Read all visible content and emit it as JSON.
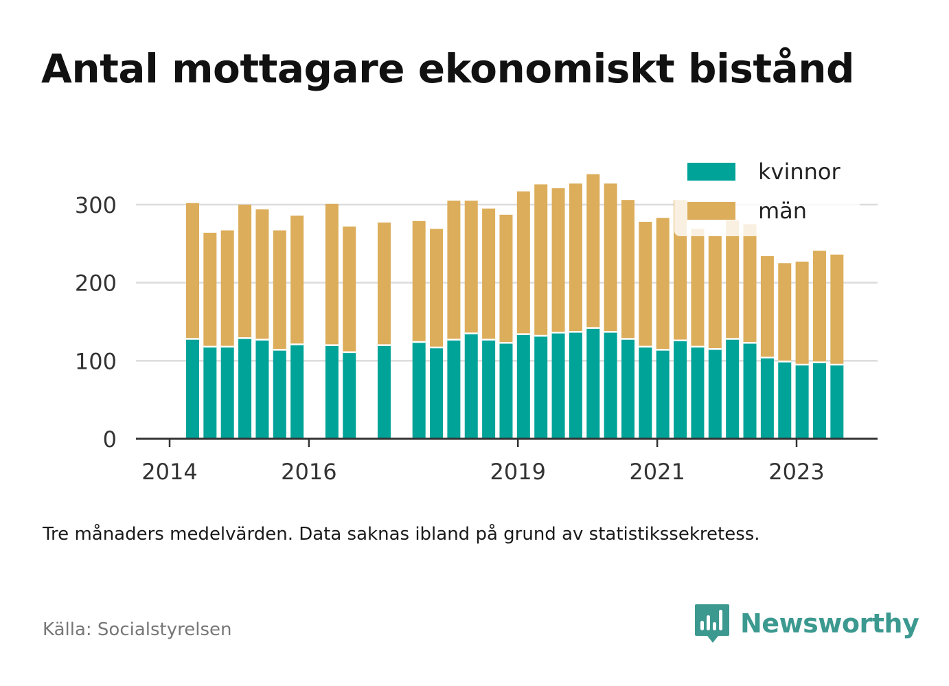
{
  "title": "Antal mottagare ekonomiskt bistånd",
  "note": "Tre månaders medelvärden. Data saknas ibland på grund av statistikssekretess.",
  "source": "Källa: Socialstyrelsen",
  "brand": "Newsworthy",
  "colors": {
    "kvinnor": "#00a398",
    "man": "#dcad5a",
    "grid": "#dcdcdc",
    "axis": "#333333",
    "brand": "#3c9990"
  },
  "chart_data": {
    "type": "bar",
    "stacked": true,
    "x_ticks": [
      {
        "label": "2014",
        "x": 2014.0
      },
      {
        "label": "2016",
        "x": 2016.0
      },
      {
        "label": "2019",
        "x": 2019.0
      },
      {
        "label": "2021",
        "x": 2021.0
      },
      {
        "label": "2023",
        "x": 2023.0
      }
    ],
    "xlim": [
      2013.5,
      2024.2
    ],
    "ylim": [
      0,
      342
    ],
    "y_ticks": [
      0,
      100,
      200,
      300
    ],
    "grid": true,
    "legend_position": "top-right",
    "series": [
      {
        "name": "kvinnor",
        "color": "#00a398"
      },
      {
        "name": "män",
        "color": "#dcad5a"
      }
    ],
    "points": [
      {
        "x": 2014.33,
        "kvinnor": 128,
        "man": 174
      },
      {
        "x": 2014.58,
        "kvinnor": 118,
        "man": 146
      },
      {
        "x": 2014.83,
        "kvinnor": 118,
        "man": 149
      },
      {
        "x": 2015.08,
        "kvinnor": 129,
        "man": 171
      },
      {
        "x": 2015.33,
        "kvinnor": 127,
        "man": 167
      },
      {
        "x": 2015.58,
        "kvinnor": 114,
        "man": 153
      },
      {
        "x": 2015.83,
        "kvinnor": 121,
        "man": 165
      },
      {
        "x": 2016.33,
        "kvinnor": 120,
        "man": 181
      },
      {
        "x": 2016.58,
        "kvinnor": 111,
        "man": 161
      },
      {
        "x": 2017.08,
        "kvinnor": 120,
        "man": 157
      },
      {
        "x": 2017.58,
        "kvinnor": 124,
        "man": 155
      },
      {
        "x": 2017.83,
        "kvinnor": 117,
        "man": 152
      },
      {
        "x": 2018.08,
        "kvinnor": 127,
        "man": 178
      },
      {
        "x": 2018.33,
        "kvinnor": 135,
        "man": 170
      },
      {
        "x": 2018.58,
        "kvinnor": 127,
        "man": 168
      },
      {
        "x": 2018.83,
        "kvinnor": 123,
        "man": 164
      },
      {
        "x": 2019.08,
        "kvinnor": 134,
        "man": 183
      },
      {
        "x": 2019.33,
        "kvinnor": 132,
        "man": 194
      },
      {
        "x": 2019.58,
        "kvinnor": 136,
        "man": 185
      },
      {
        "x": 2019.83,
        "kvinnor": 137,
        "man": 190
      },
      {
        "x": 2020.08,
        "kvinnor": 142,
        "man": 197
      },
      {
        "x": 2020.33,
        "kvinnor": 137,
        "man": 190
      },
      {
        "x": 2020.58,
        "kvinnor": 128,
        "man": 178
      },
      {
        "x": 2020.83,
        "kvinnor": 118,
        "man": 160
      },
      {
        "x": 2021.08,
        "kvinnor": 114,
        "man": 169
      },
      {
        "x": 2021.33,
        "kvinnor": 126,
        "man": 180
      },
      {
        "x": 2021.58,
        "kvinnor": 118,
        "man": 151
      },
      {
        "x": 2021.83,
        "kvinnor": 115,
        "man": 145
      },
      {
        "x": 2022.08,
        "kvinnor": 128,
        "man": 152
      },
      {
        "x": 2022.33,
        "kvinnor": 123,
        "man": 152
      },
      {
        "x": 2022.58,
        "kvinnor": 104,
        "man": 130
      },
      {
        "x": 2022.83,
        "kvinnor": 99,
        "man": 126
      },
      {
        "x": 2023.08,
        "kvinnor": 95,
        "man": 132
      },
      {
        "x": 2023.33,
        "kvinnor": 98,
        "man": 143
      },
      {
        "x": 2023.58,
        "kvinnor": 95,
        "man": 141
      }
    ]
  }
}
